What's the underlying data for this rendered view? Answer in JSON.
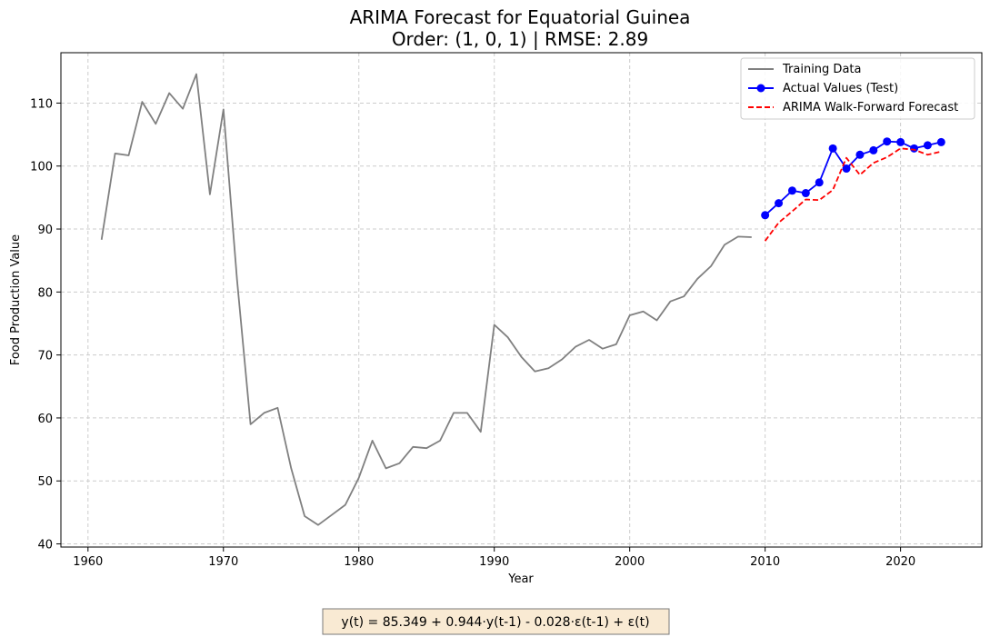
{
  "chart_data": {
    "type": "line",
    "title": "ARIMA Forecast for Equatorial Guinea",
    "subtitle": "Order: (1, 0, 1) | RMSE: 2.89",
    "xlabel": "Year",
    "ylabel": "Food Production Value",
    "xlim": [
      1958,
      2026
    ],
    "ylim": [
      39.5,
      118
    ],
    "xticks": [
      1960,
      1970,
      1980,
      1990,
      2000,
      2010,
      2020
    ],
    "yticks": [
      40,
      50,
      60,
      70,
      80,
      90,
      100,
      110
    ],
    "grid": true,
    "legend_position": "top-right",
    "series": [
      {
        "name": "Training Data",
        "color": "#808080",
        "style": "solid",
        "markers": false,
        "x": [
          1961,
          1962,
          1963,
          1964,
          1965,
          1966,
          1967,
          1968,
          1969,
          1970,
          1971,
          1972,
          1973,
          1974,
          1975,
          1976,
          1977,
          1978,
          1979,
          1980,
          1981,
          1982,
          1983,
          1984,
          1985,
          1986,
          1987,
          1988,
          1989,
          1990,
          1991,
          1992,
          1993,
          1994,
          1995,
          1996,
          1997,
          1998,
          1999,
          2000,
          2001,
          2002,
          2003,
          2004,
          2005,
          2006,
          2007,
          2008,
          2009
        ],
        "y": [
          88.3,
          102.0,
          101.7,
          110.2,
          106.7,
          111.6,
          109.1,
          114.6,
          95.5,
          109.0,
          82.0,
          59.0,
          60.8,
          61.6,
          52.0,
          44.4,
          43.0,
          44.6,
          46.2,
          50.5,
          56.4,
          52.0,
          52.8,
          55.4,
          55.2,
          56.4,
          60.8,
          60.8,
          57.8,
          74.8,
          72.8,
          69.7,
          67.4,
          67.9,
          69.3,
          71.3,
          72.4,
          71.0,
          71.7,
          76.3,
          76.9,
          75.5,
          78.5,
          79.3,
          82.1,
          84.1,
          87.5,
          88.8,
          88.7
        ]
      },
      {
        "name": "Actual Values (Test)",
        "color": "#0000ff",
        "style": "solid",
        "markers": true,
        "x": [
          2010,
          2011,
          2012,
          2013,
          2014,
          2015,
          2016,
          2017,
          2018,
          2019,
          2020,
          2021,
          2022,
          2023
        ],
        "y": [
          92.2,
          94.1,
          96.1,
          95.7,
          97.4,
          102.8,
          99.6,
          101.8,
          102.5,
          103.9,
          103.8,
          102.8,
          103.3,
          103.8
        ]
      },
      {
        "name": "ARIMA Walk-Forward Forecast",
        "color": "#ff0000",
        "style": "dashed",
        "markers": false,
        "x": [
          2010,
          2011,
          2012,
          2013,
          2014,
          2015,
          2016,
          2017,
          2018,
          2019,
          2020,
          2021,
          2022,
          2023
        ],
        "y": [
          88.1,
          91.0,
          92.8,
          94.7,
          94.6,
          96.2,
          101.3,
          98.6,
          100.5,
          101.4,
          102.8,
          102.6,
          101.8,
          102.3
        ]
      }
    ],
    "annotation": "y(t) = 85.349 + 0.944·y(t-1) - 0.028·ε(t-1) + ε(t)"
  }
}
